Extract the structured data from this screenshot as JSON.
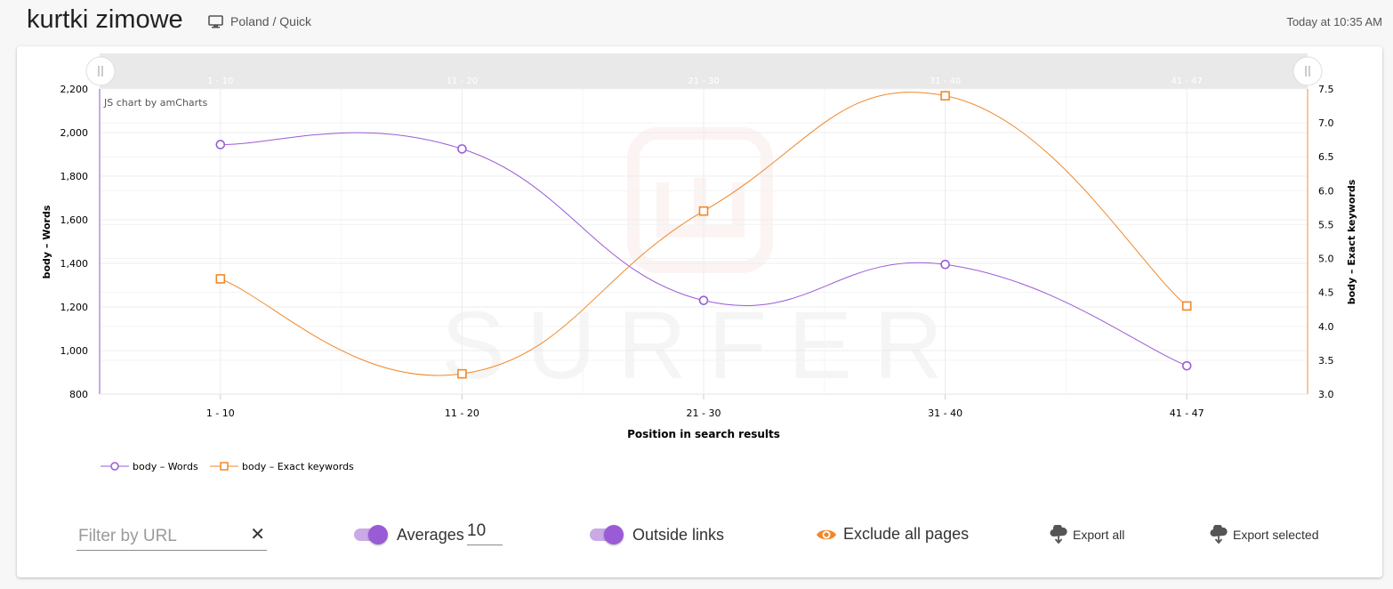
{
  "header": {
    "title": "kurtki zimowe",
    "location": "Poland / Quick",
    "timestamp": "Today at 10:35 AM"
  },
  "controls": {
    "filter_placeholder": "Filter by URL",
    "clear_icon": "close-icon",
    "averages_label": "Averages",
    "averages_value": "10",
    "averages_toggle_on": true,
    "outside_links_label": "Outside links",
    "outside_links_toggle_on": true,
    "exclude_label": "Exclude all pages",
    "export_all_label": "Export all",
    "export_selected_label": "Export selected"
  },
  "chart_data": {
    "type": "line",
    "credit": "JS chart by amCharts",
    "watermark": "SURFER",
    "categories": [
      "1 - 10",
      "11 - 20",
      "21 - 30",
      "31 - 40",
      "41 - 47"
    ],
    "xlabel": "Position in search results",
    "ylabel_left": "body – Words",
    "ylabel_right": "body – Exact keywords",
    "left_ticks": [
      "2,200",
      "2,000",
      "1,800",
      "1,600",
      "1,400",
      "1,200",
      "1,000",
      "800"
    ],
    "right_ticks": [
      "7.5",
      "7.0",
      "6.5",
      "6.0",
      "5.5",
      "5.0",
      "4.5",
      "4.0",
      "3.5",
      "3.0"
    ],
    "ylim_left": [
      800,
      2200
    ],
    "ylim_right": [
      3.0,
      7.5
    ],
    "grid": true,
    "legend_position": "bottom-left",
    "series": [
      {
        "name": "body – Words",
        "axis": "left",
        "color": "#9a5bd6",
        "marker": "circle",
        "values": [
          1945,
          1925,
          1230,
          1395,
          930
        ]
      },
      {
        "name": "body – Exact keywords",
        "axis": "right",
        "color": "#f0882a",
        "marker": "square",
        "values": [
          4.7,
          3.3,
          5.7,
          7.4,
          4.3
        ]
      }
    ]
  }
}
